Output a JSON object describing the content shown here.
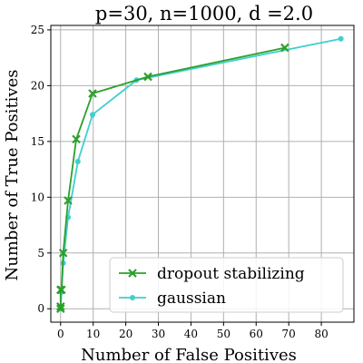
{
  "chart_data": {
    "type": "line",
    "title": "p=30, n=1000, d =2.0",
    "xlabel": "Number of False Positives",
    "ylabel": "Number of True Positives",
    "xlim": [
      -3,
      90
    ],
    "ylim": [
      -1.2,
      25.4
    ],
    "xticks": [
      0,
      10,
      20,
      30,
      40,
      50,
      60,
      70,
      80
    ],
    "yticks": [
      0,
      5,
      10,
      15,
      20,
      25
    ],
    "grid": true,
    "legend_position": "lower-right",
    "series": [
      {
        "name": "dropout stabilizing",
        "color": "#2ca02c",
        "marker": "x",
        "x": [
          0,
          0,
          0,
          0.3,
          0.8,
          2.3,
          4.8,
          9.8,
          26.8,
          68.8
        ],
        "y": [
          0,
          0.2,
          1.7,
          1.7,
          5.0,
          9.7,
          15.2,
          19.3,
          20.8,
          23.4
        ]
      },
      {
        "name": "gaussian",
        "color": "#3ecfcf",
        "marker": "o",
        "x": [
          0,
          0.3,
          0.8,
          2.3,
          5.3,
          9.8,
          23.3,
          86.0
        ],
        "y": [
          0,
          1.5,
          4.1,
          8.2,
          13.2,
          17.4,
          20.5,
          24.2
        ]
      }
    ]
  }
}
